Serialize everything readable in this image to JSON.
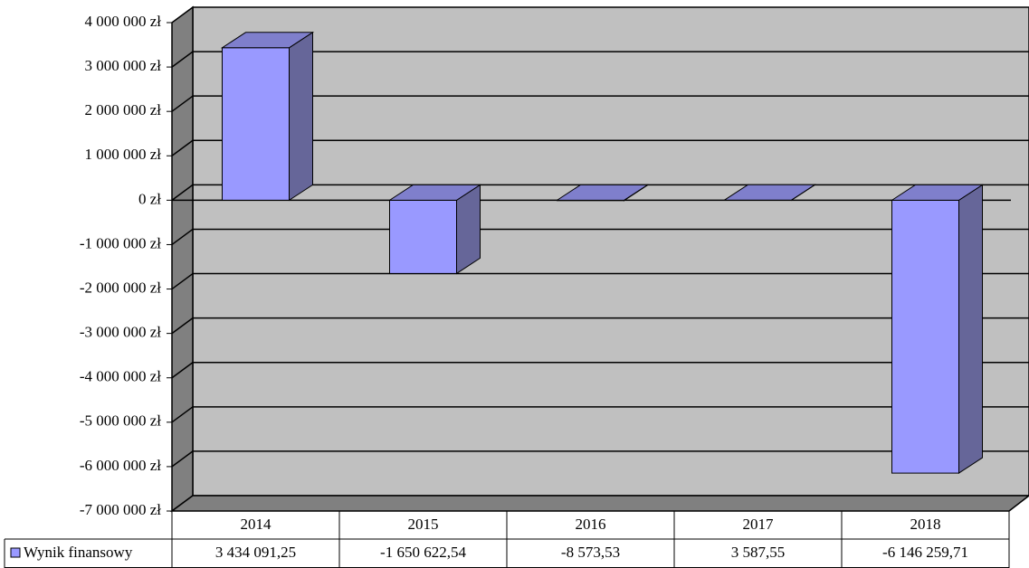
{
  "chart_data": {
    "type": "bar3d",
    "categories": [
      "2014",
      "2015",
      "2016",
      "2017",
      "2018"
    ],
    "series": [
      {
        "name": "Wynik finansowy",
        "color": "#9999ff",
        "values": [
          3434091.25,
          -1650622.54,
          -8573.53,
          3587.55,
          -6146259.71
        ],
        "value_labels": [
          "3 434 091,25",
          "-1 650 622,54",
          "-8 573,53",
          "3 587,55",
          "-6 146 259,71"
        ]
      }
    ],
    "ylim": [
      -7000000,
      4000000
    ],
    "yticks": [
      {
        "value": 4000000,
        "label": "4 000 000 zł"
      },
      {
        "value": 3000000,
        "label": "3 000 000 zł"
      },
      {
        "value": 2000000,
        "label": "2 000 000 zł"
      },
      {
        "value": 1000000,
        "label": "1 000 000 zł"
      },
      {
        "value": 0,
        "label": "0 zł"
      },
      {
        "value": -1000000,
        "label": "-1 000 000 zł"
      },
      {
        "value": -2000000,
        "label": "-2 000 000 zł"
      },
      {
        "value": -3000000,
        "label": "-3 000 000 zł"
      },
      {
        "value": -4000000,
        "label": "-4 000 000 zł"
      },
      {
        "value": -5000000,
        "label": "-5 000 000 zł"
      },
      {
        "value": -6000000,
        "label": "-6 000 000 zł"
      },
      {
        "value": -7000000,
        "label": "-7 000 000 zł"
      }
    ],
    "grid": true
  }
}
